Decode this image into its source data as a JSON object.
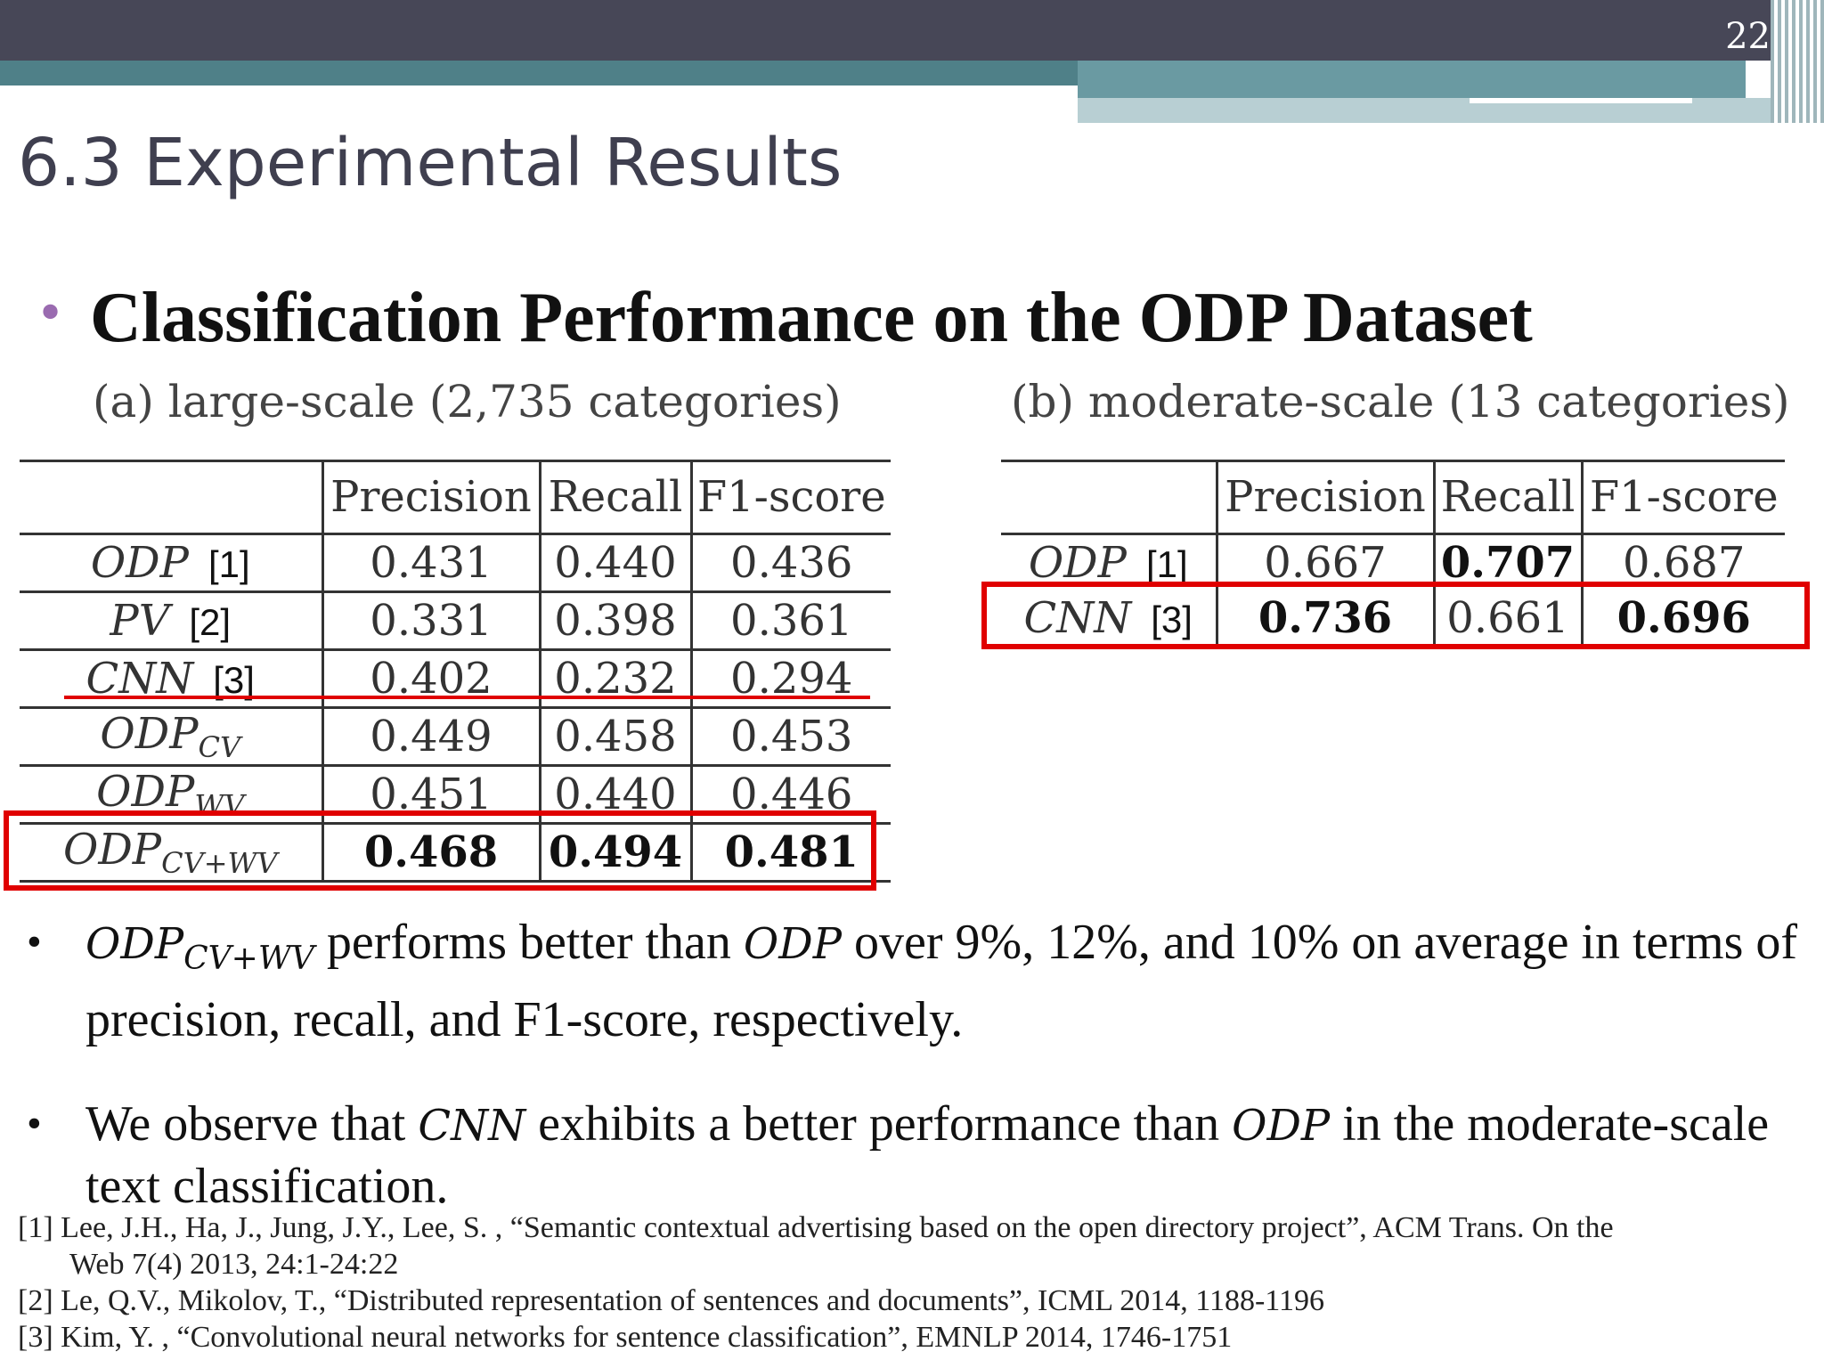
{
  "header": {
    "page_number": "22"
  },
  "title": "6.3 Experimental Results",
  "heading": "Classification Performance on the ODP Dataset",
  "table_a": {
    "caption": "(a) large-scale (2,735 categories)",
    "columns": [
      "Precision",
      "Recall",
      "F1-score"
    ],
    "rows": [
      {
        "name": "ODP",
        "sub": "",
        "ref": "[1]",
        "values": [
          "0.431",
          "0.440",
          "0.436"
        ]
      },
      {
        "name": "PV",
        "sub": "",
        "ref": "[2]",
        "values": [
          "0.331",
          "0.398",
          "0.361"
        ]
      },
      {
        "name": "CNN",
        "sub": "",
        "ref": "[3]",
        "values": [
          "0.402",
          "0.232",
          "0.294"
        ]
      },
      {
        "name": "ODP",
        "sub": "CV",
        "ref": "",
        "values": [
          "0.449",
          "0.458",
          "0.453"
        ]
      },
      {
        "name": "ODP",
        "sub": "WV",
        "ref": "",
        "values": [
          "0.451",
          "0.440",
          "0.446"
        ]
      },
      {
        "name": "ODP",
        "sub": "CV+WV",
        "ref": "",
        "values": [
          "0.468",
          "0.494",
          "0.481"
        ]
      }
    ]
  },
  "table_b": {
    "caption": "(b) moderate-scale (13 categories)",
    "columns": [
      "Precision",
      "Recall",
      "F1-score"
    ],
    "rows": [
      {
        "name": "ODP",
        "ref": "[1]",
        "values": [
          "0.667",
          "0.707",
          "0.687"
        ]
      },
      {
        "name": "CNN",
        "ref": "[3]",
        "values": [
          "0.736",
          "0.661",
          "0.696"
        ]
      }
    ]
  },
  "bullets": {
    "b1_term": "ODP",
    "b1_sub": "CV+WV",
    "b1_text1": " performs better than ",
    "b1_term2": "ODP",
    "b1_text2": " over 9%, 12%, and 10% on average in terms of precision, recall, and F1-score, respectively.",
    "b2_text1": "We observe that ",
    "b2_term1": "CNN",
    "b2_text2": " exhibits a better performance than ",
    "b2_term2": "ODP",
    "b2_text3": " in the moderate-scale text classification."
  },
  "references": [
    "[1] Lee, J.H., Ha, J., Jung, J.Y., Lee, S. , “Semantic contextual advertising based on the open directory project”, ACM Trans. On the",
    "Web 7(4) 2013, 24:1-24:22",
    "[2] Le, Q.V., Mikolov, T., “Distributed representation of sentences and documents”, ICML 2014, 1188-1196",
    "[3] Kim, Y. , “Convolutional neural networks for sentence classification”, EMNLP 2014, 1746-1751"
  ],
  "colors": {
    "header_dark": "#474757",
    "header_teal": "#4f8088",
    "bullet": "#9a6bb0",
    "highlight": "#e00000"
  }
}
